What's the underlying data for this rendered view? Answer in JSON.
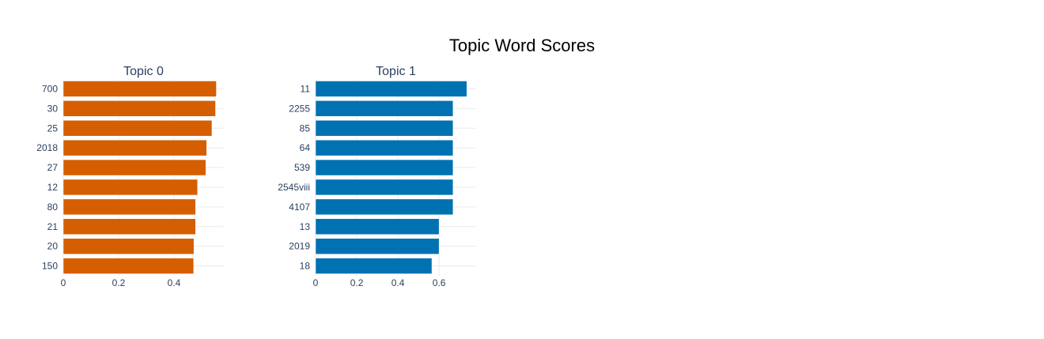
{
  "chart_data": {
    "type": "bar",
    "orientation": "horizontal",
    "title": "Topic Word Scores",
    "grid": true,
    "legend": "none",
    "subplots": [
      {
        "title": "Topic 0",
        "color": "#D55E00",
        "categories": [
          "700",
          "30",
          "25",
          "2018",
          "27",
          "12",
          "80",
          "21",
          "20",
          "150"
        ],
        "values": [
          0.553,
          0.55,
          0.537,
          0.518,
          0.515,
          0.485,
          0.478,
          0.478,
          0.472,
          0.471
        ],
        "xlim": [
          0,
          0.58
        ],
        "xticks": [
          "0",
          "0.2",
          "0.4"
        ]
      },
      {
        "title": "Topic 1",
        "color": "#0072B2",
        "categories": [
          "11",
          "2255",
          "85",
          "64",
          "539",
          "2545viii",
          "4107",
          "13",
          "2019",
          "18"
        ],
        "values": [
          0.735,
          0.668,
          0.668,
          0.668,
          0.668,
          0.668,
          0.668,
          0.6,
          0.6,
          0.565
        ],
        "xlim": [
          0,
          0.78
        ],
        "xticks": [
          "0",
          "0.2",
          "0.4",
          "0.6"
        ]
      }
    ]
  }
}
